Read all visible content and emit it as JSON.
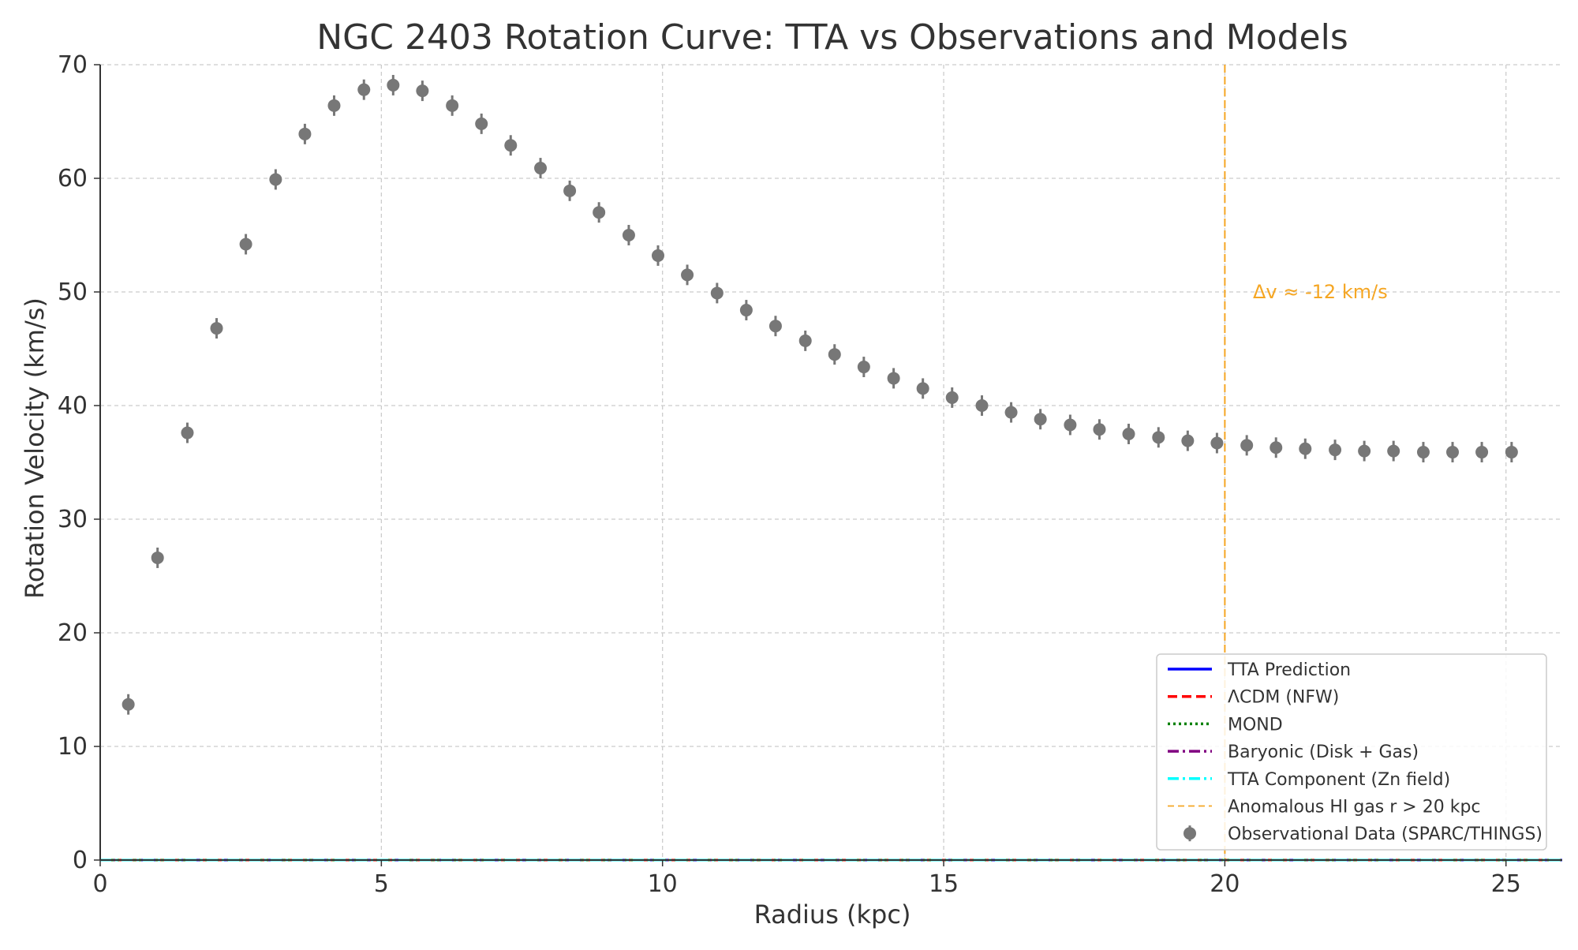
{
  "chart_data": {
    "type": "scatter",
    "title": "NGC 2403 Rotation Curve: TTA vs Observations and Models",
    "xlabel": "Radius (kpc)",
    "ylabel": "Rotation Velocity (km/s)",
    "xlim": [
      0,
      26
    ],
    "ylim": [
      0,
      70
    ],
    "xticks": [
      0,
      5,
      10,
      15,
      20,
      25
    ],
    "yticks": [
      0,
      10,
      20,
      30,
      40,
      50,
      60,
      70
    ],
    "grid": true,
    "legend_position": "lower-right",
    "annotation": {
      "text": "Δv ≈ -12 km/s",
      "x": 20.5,
      "y": 50,
      "color": "#f5a623"
    },
    "vline": {
      "x": 20,
      "color": "#f5a623"
    },
    "legend": [
      {
        "label": "TTA Prediction",
        "color": "#0000ff",
        "style": "solid"
      },
      {
        "label": "ΛCDM (NFW)",
        "color": "#ff0000",
        "style": "dashed"
      },
      {
        "label": "MOND",
        "color": "#008000",
        "style": "dotted"
      },
      {
        "label": "Baryonic (Disk + Gas)",
        "color": "#800080",
        "style": "dashdot"
      },
      {
        "label": "TTA Component (Zn field)",
        "color": "#00ffff",
        "style": "dashdot"
      },
      {
        "label": "Anomalous HI gas r > 20 kpc",
        "color": "#f5a623",
        "style": "thin-dashed"
      },
      {
        "label": "Observational Data (SPARC/THINGS)",
        "color": "#777777",
        "style": "errorbar"
      }
    ],
    "series": [
      {
        "name": "TTA Prediction",
        "x": [
          0,
          26
        ],
        "values": [
          0,
          0
        ],
        "color": "#0000ff"
      },
      {
        "name": "ΛCDM (NFW)",
        "x": [
          0,
          26
        ],
        "values": [
          0,
          0
        ],
        "color": "#ff0000"
      },
      {
        "name": "MOND",
        "x": [
          0,
          26
        ],
        "values": [
          0,
          0
        ],
        "color": "#008000"
      },
      {
        "name": "Baryonic (Disk + Gas)",
        "x": [
          0,
          26
        ],
        "values": [
          0,
          0
        ],
        "color": "#800080"
      },
      {
        "name": "TTA Component (Zn field)",
        "x": [
          0,
          26
        ],
        "values": [
          0,
          0
        ],
        "color": "#00ffff"
      }
    ],
    "observations": {
      "name": "Observational Data (SPARC/THINGS)",
      "color": "#777777",
      "error": 0.9,
      "x": [
        0.5,
        1.02,
        1.55,
        2.07,
        2.59,
        3.12,
        3.64,
        4.16,
        4.69,
        5.21,
        5.73,
        6.26,
        6.78,
        7.3,
        7.83,
        8.35,
        8.87,
        9.4,
        9.92,
        10.44,
        10.97,
        11.49,
        12.01,
        12.54,
        13.06,
        13.58,
        14.11,
        14.63,
        15.15,
        15.68,
        16.2,
        16.72,
        17.25,
        17.77,
        18.29,
        18.82,
        19.34,
        19.86,
        20.39,
        20.91,
        21.43,
        21.96,
        22.48,
        23.0,
        23.53,
        24.05,
        24.57,
        25.1
      ],
      "y": [
        13.7,
        26.6,
        37.6,
        46.8,
        54.2,
        59.9,
        63.9,
        66.4,
        67.8,
        68.2,
        67.7,
        66.4,
        64.8,
        62.9,
        60.9,
        58.9,
        57.0,
        55.0,
        53.2,
        51.5,
        49.9,
        48.4,
        47.0,
        45.7,
        44.5,
        43.4,
        42.4,
        41.5,
        40.7,
        40.0,
        39.4,
        38.8,
        38.3,
        37.9,
        37.5,
        37.2,
        36.9,
        36.7,
        36.5,
        36.3,
        36.2,
        36.1,
        36.0,
        36.0,
        35.9,
        35.9,
        35.9,
        35.9
      ]
    }
  }
}
